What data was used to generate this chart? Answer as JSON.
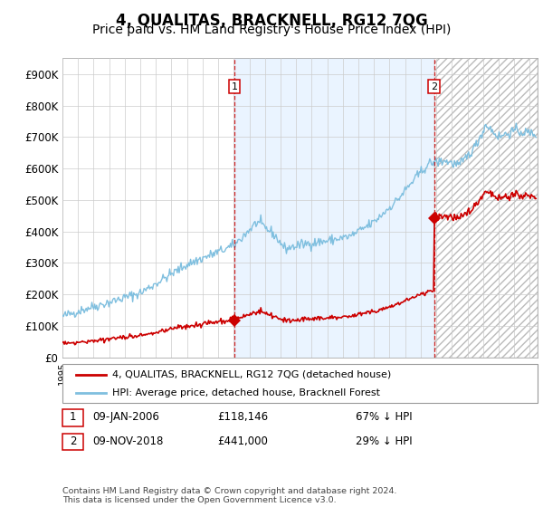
{
  "title": "4, QUALITAS, BRACKNELL, RG12 7QG",
  "subtitle": "Price paid vs. HM Land Registry's House Price Index (HPI)",
  "yticks": [
    0,
    100000,
    200000,
    300000,
    400000,
    500000,
    600000,
    700000,
    800000,
    900000
  ],
  "ytick_labels": [
    "£0",
    "£100K",
    "£200K",
    "£300K",
    "£400K",
    "£500K",
    "£600K",
    "£700K",
    "£800K",
    "£900K"
  ],
  "ylim": [
    0,
    950000
  ],
  "xlim_start": 1995.0,
  "xlim_end": 2025.5,
  "hpi_color": "#7fbfdf",
  "price_color": "#cc0000",
  "vline_color": "#cc0000",
  "shade_color": "#ddeeff",
  "sale1_year": 2006.036,
  "sale1_price": 118146,
  "sale2_year": 2018.86,
  "sale2_price": 441000,
  "sale1_label": "1",
  "sale2_label": "2",
  "legend_line1": "4, QUALITAS, BRACKNELL, RG12 7QG (detached house)",
  "legend_line2": "HPI: Average price, detached house, Bracknell Forest",
  "table_row1": [
    "1",
    "09-JAN-2006",
    "£118,146",
    "67% ↓ HPI"
  ],
  "table_row2": [
    "2",
    "09-NOV-2018",
    "£441,000",
    "29% ↓ HPI"
  ],
  "footer": "Contains HM Land Registry data © Crown copyright and database right 2024.\nThis data is licensed under the Open Government Licence v3.0.",
  "background_color": "#ffffff",
  "grid_color": "#cccccc",
  "title_fontsize": 12,
  "subtitle_fontsize": 10,
  "axis_fontsize": 8.5,
  "hpi_linewidth": 1.0,
  "price_linewidth": 1.2
}
